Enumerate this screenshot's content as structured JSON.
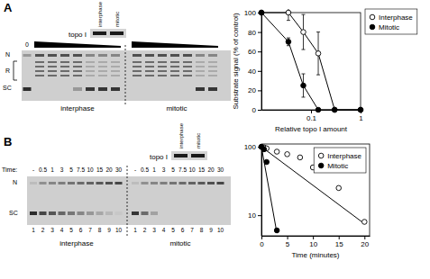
{
  "figure": {
    "panels": [
      {
        "label": "A",
        "blot_label": "topo I",
        "blot_lanes": [
          "interphase",
          "mitotic"
        ],
        "bands": [
          "N",
          "R",
          "SC"
        ],
        "zero_lane": "0",
        "groups": [
          "interphase",
          "mitotic"
        ]
      },
      {
        "label": "B",
        "blot_label": "topo I",
        "blot_lanes": [
          "interphase",
          "mitotic"
        ],
        "bands": [
          "N",
          "SC"
        ],
        "time_label": "Time:",
        "times": [
          "-",
          "0.5",
          "1",
          "3",
          "5",
          "7.5",
          "10",
          "15",
          "20",
          "30"
        ],
        "lane_numbers": [
          1,
          2,
          3,
          4,
          5,
          6,
          7,
          8,
          9,
          10
        ],
        "groups": [
          "interphase",
          "mitotic"
        ]
      }
    ]
  },
  "chart_data": [
    {
      "type": "line",
      "log": "x",
      "x_label": "Relative topo I amount",
      "y_label": "Substrate signal (% of control)",
      "x": [
        0.01,
        0.035,
        0.07,
        0.14,
        0.3,
        1
      ],
      "xlim": [
        0.01,
        1
      ],
      "xticks": [
        0.1,
        1
      ],
      "ylim": [
        0,
        100
      ],
      "yticks": [
        0,
        20,
        40,
        60,
        80,
        100
      ],
      "legend": "right",
      "series": [
        {
          "name": "Interphase",
          "color": "#000000",
          "marker": "open-circle",
          "values": [
            100,
            100,
            80,
            58,
            0,
            0
          ],
          "errors": [
            0,
            8,
            18,
            22,
            0,
            0
          ]
        },
        {
          "name": "Mitotic",
          "color": "#000000",
          "marker": "circle",
          "values": [
            100,
            70,
            25,
            0,
            0,
            0
          ],
          "errors": [
            0,
            4,
            12,
            0,
            0,
            0
          ]
        }
      ]
    },
    {
      "type": "scatter",
      "log": "y",
      "x_label": "Time (minutes)",
      "xlim": [
        0,
        21
      ],
      "xticks": [
        0,
        5,
        10,
        15,
        20
      ],
      "ylim": [
        5,
        110
      ],
      "yticks": [
        10,
        100
      ],
      "legend": "top right",
      "series": [
        {
          "name": "Interphase",
          "color": "#000000",
          "marker": "open-circle",
          "x": [
            0,
            0.5,
            1,
            3,
            5,
            7.5,
            10,
            15,
            20
          ],
          "values": [
            100,
            98,
            95,
            85,
            78,
            70,
            50,
            25,
            8
          ],
          "fit_x": [
            0,
            20
          ],
          "fit_values": [
            100,
            7.5
          ]
        },
        {
          "name": "Mitotic",
          "color": "#000000",
          "marker": "circle",
          "x": [
            0,
            0.5,
            1,
            3
          ],
          "values": [
            100,
            92,
            60,
            6
          ],
          "fit_x": [
            0,
            3
          ],
          "fit_values": [
            100,
            5.5
          ]
        }
      ]
    }
  ]
}
